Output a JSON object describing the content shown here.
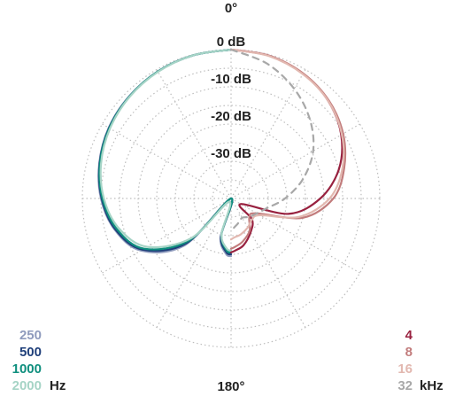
{
  "chart_data": {
    "type": "polar",
    "title": "",
    "angle_top_label": "0°",
    "angle_bottom_label": "180°",
    "radial_axis": {
      "unit": "dB",
      "range": [
        -40,
        0
      ],
      "ring_step": 5,
      "tick_labels": [
        "0 dB",
        "-10 dB",
        "-20 dB",
        "-30 dB"
      ],
      "tick_values": [
        0,
        -10,
        -20,
        -30
      ]
    },
    "angular_grid_step_deg": 30,
    "grid": "dotted",
    "legend_left": {
      "unit": "Hz",
      "entries": [
        {
          "label": "250",
          "color": "#8f9bbd"
        },
        {
          "label": "500",
          "color": "#1f3f7a"
        },
        {
          "label": "1000",
          "color": "#0f8f7e"
        },
        {
          "label": "2000",
          "color": "#a6d4c6"
        }
      ]
    },
    "legend_right": {
      "unit": "kHz",
      "entries": [
        {
          "label": "4",
          "color": "#98213f"
        },
        {
          "label": "8",
          "color": "#c27c7c"
        },
        {
          "label": "16",
          "color": "#e2b8b0"
        },
        {
          "label": "32",
          "color": "#a8a8a8"
        }
      ]
    },
    "series": [
      {
        "side": "left",
        "color": "#8f9bbd",
        "dashed": false,
        "theta": [
          0,
          15,
          30,
          45,
          60,
          75,
          90,
          105,
          120,
          135,
          150,
          165,
          175,
          180
        ],
        "r": [
          0,
          -0.2,
          -0.6,
          -1.2,
          -2,
          -3.3,
          -5,
          -7.6,
          -12,
          -22,
          -39,
          -29,
          -25,
          -24.5
        ]
      },
      {
        "side": "left",
        "color": "#1f3f7a",
        "dashed": false,
        "theta": [
          0,
          15,
          30,
          45,
          60,
          75,
          90,
          105,
          120,
          135,
          150,
          165,
          175,
          180
        ],
        "r": [
          0,
          -0.2,
          -0.6,
          -1.3,
          -2.1,
          -3.4,
          -5.2,
          -7.8,
          -12.5,
          -23,
          -40,
          -29.5,
          -25.5,
          -25
        ]
      },
      {
        "side": "left",
        "color": "#0f8f7e",
        "dashed": false,
        "theta": [
          0,
          15,
          30,
          45,
          60,
          75,
          90,
          105,
          120,
          135,
          150,
          165,
          175,
          180
        ],
        "r": [
          0,
          -0.2,
          -0.6,
          -1.3,
          -2.2,
          -3.5,
          -5.4,
          -8.2,
          -13,
          -24,
          -40,
          -30,
          -26,
          -25.5
        ]
      },
      {
        "side": "left",
        "color": "#a6d4c6",
        "dashed": false,
        "theta": [
          0,
          15,
          30,
          45,
          60,
          75,
          90,
          105,
          120,
          135,
          150,
          165,
          175,
          180
        ],
        "r": [
          0,
          -0.2,
          -0.7,
          -1.4,
          -2.4,
          -3.8,
          -5.8,
          -8.8,
          -14,
          -25,
          -39,
          -30,
          -26.5,
          -26
        ]
      },
      {
        "side": "right",
        "color": "#98213f",
        "dashed": false,
        "theta": [
          0,
          15,
          30,
          45,
          60,
          75,
          90,
          105,
          120,
          135,
          150,
          165,
          175,
          180
        ],
        "r": [
          0,
          -0.3,
          -1.3,
          -3,
          -5.8,
          -10,
          -16,
          -24,
          -37,
          -32,
          -29.5,
          -27,
          -26,
          -25.5
        ]
      },
      {
        "side": "right",
        "color": "#c27c7c",
        "dashed": false,
        "theta": [
          0,
          15,
          30,
          45,
          60,
          75,
          90,
          105,
          120,
          135,
          150,
          165,
          175,
          180
        ],
        "r": [
          0,
          -0.3,
          -1.2,
          -2.8,
          -5.2,
          -8.5,
          -12.5,
          -20,
          -32,
          -33,
          -30,
          -28,
          -27,
          -26.5
        ]
      },
      {
        "side": "right",
        "color": "#e2b8b0",
        "dashed": false,
        "theta": [
          0,
          15,
          30,
          45,
          60,
          75,
          90,
          105,
          120,
          135,
          150,
          165,
          175,
          180
        ],
        "r": [
          0,
          -0.4,
          -1.4,
          -3,
          -5.6,
          -9,
          -13.5,
          -21,
          -31,
          -32,
          -31,
          -30,
          -29.5,
          -29
        ]
      },
      {
        "side": "right",
        "color": "#a8a8a8",
        "dashed": true,
        "theta": [
          0,
          15,
          30,
          45,
          60,
          75,
          90,
          105,
          120,
          135,
          150,
          165,
          175,
          180
        ],
        "r": [
          0,
          -2.5,
          -6,
          -10,
          -14.5,
          -20,
          -25.5,
          -30,
          -32,
          -33,
          -34,
          -33,
          -32,
          -31
        ]
      }
    ]
  }
}
